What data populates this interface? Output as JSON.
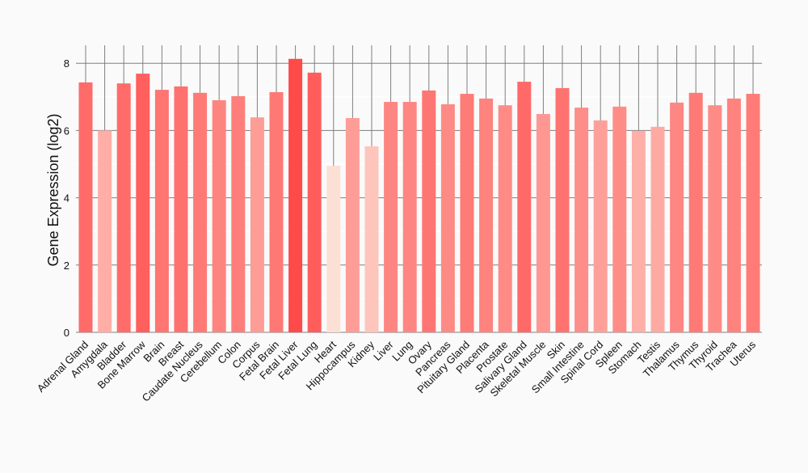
{
  "chart_data": {
    "type": "bar",
    "title": "",
    "xlabel": "",
    "ylabel": "Gene Expression (log2)",
    "ylim": [
      0,
      8.5
    ],
    "yticks": [
      0,
      2,
      4,
      6,
      8
    ],
    "grid": true,
    "color_low": "#fde0d5",
    "color_high": "#ff4a4a",
    "categories": [
      "Adrenal Gland",
      "Amygdala",
      "Bladder",
      "Bone Marrow",
      "Brain",
      "Breast",
      "Caudate Nucleus",
      "Cerebellum",
      "Colon",
      "Corpus",
      "Fetal Brain",
      "Fetal Liver",
      "Fetal Lung",
      "Heart",
      "Hippocampus",
      "Kidney",
      "Liver",
      "Lung",
      "Ovary",
      "Pancreas",
      "Pituitary Gland",
      "Placenta",
      "Prostate",
      "Salivary Gland",
      "Skeletal Muscle",
      "Skin",
      "Small Intestine",
      "Spinal Cord",
      "Spleen",
      "Stomach",
      "Testis",
      "Thalamus",
      "Thymus",
      "Thyroid",
      "Trachea",
      "Uterus"
    ],
    "values": [
      7.43,
      6.0,
      7.4,
      7.69,
      7.21,
      7.31,
      7.12,
      6.9,
      7.02,
      6.39,
      7.14,
      8.13,
      7.72,
      4.95,
      6.37,
      5.53,
      6.85,
      6.85,
      7.19,
      6.78,
      7.09,
      6.95,
      6.75,
      7.45,
      6.49,
      7.26,
      6.68,
      6.3,
      6.71,
      5.99,
      6.11,
      6.83,
      7.12,
      6.75,
      6.95,
      7.09
    ]
  }
}
